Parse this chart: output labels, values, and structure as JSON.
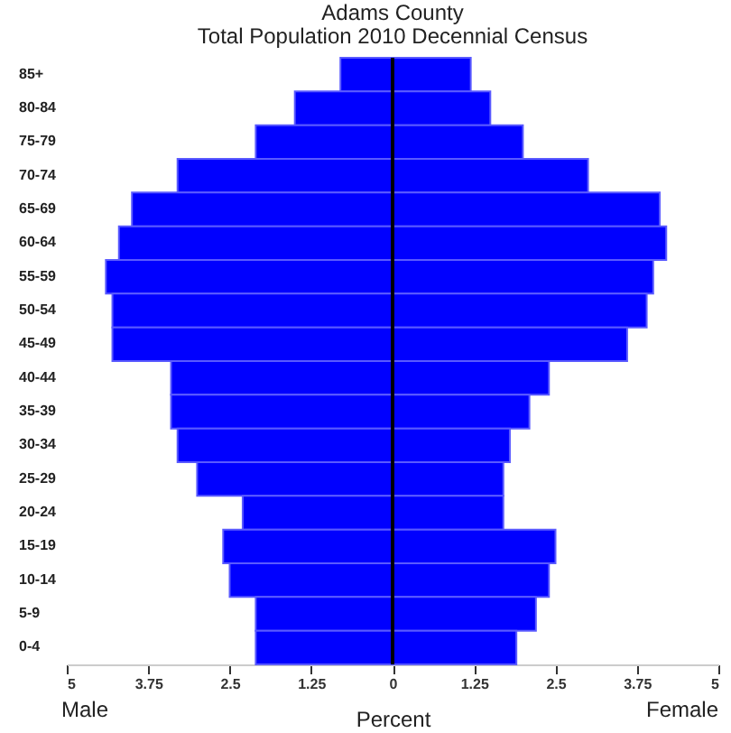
{
  "chart_data": {
    "type": "bar",
    "orientation": "horizontal",
    "title": "Adams County",
    "subtitle": "Total Population 2010 Decennial Census",
    "xlabel": "Percent",
    "categories": [
      "85+",
      "80-84",
      "75-79",
      "70-74",
      "65-69",
      "60-64",
      "55-59",
      "50-54",
      "45-49",
      "40-44",
      "35-39",
      "30-34",
      "25-29",
      "20-24",
      "15-19",
      "10-14",
      "5-9",
      "0-4"
    ],
    "series": [
      {
        "color": "#0000ff",
        "values": [
          -0.8,
          -1.5,
          -2.1,
          -3.3,
          -4.0,
          -4.2,
          -4.4,
          -4.3,
          -4.3,
          -3.4,
          -3.4,
          -3.3,
          -3.0,
          -2.3,
          -2.6,
          -2.5,
          -2.1,
          -2.1
        ]
      },
      {
        "color": "#0000ff",
        "values": [
          1.2,
          1.5,
          2.0,
          3.0,
          4.1,
          4.2,
          4.0,
          3.9,
          3.6,
          2.4,
          2.1,
          1.8,
          1.7,
          1.7,
          2.5,
          2.4,
          2.2,
          1.9
        ]
      }
    ],
    "xlim": [
      -5,
      5
    ],
    "xticks": [
      {
        "value": -5,
        "label": "5"
      },
      {
        "value": -3.75,
        "label": "3.75"
      },
      {
        "value": -2.5,
        "label": "2.5"
      },
      {
        "value": -1.25,
        "label": "1.25"
      },
      0,
      1.25,
      2.5,
      3.75,
      5
    ],
    "ref_lines": [
      {
        "axis": "x",
        "value": 0,
        "color": "#000000"
      }
    ],
    "annotations": [
      "Male",
      "Female"
    ],
    "stacked": true,
    "grid": false
  }
}
